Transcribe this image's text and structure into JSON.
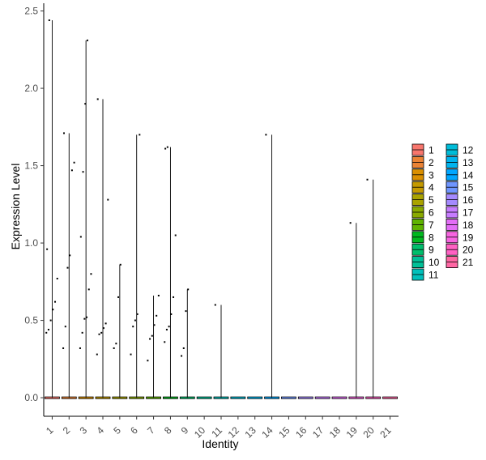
{
  "chart_data": {
    "type": "violin",
    "xlabel": "Identity",
    "ylabel": "Expression Level",
    "ylim": [
      -0.12,
      2.55
    ],
    "yticks": [
      "0.0",
      "0.5",
      "1.0",
      "1.5",
      "2.0",
      "2.5"
    ],
    "grid": false,
    "legend_position": "right",
    "categories": [
      "1",
      "2",
      "3",
      "4",
      "5",
      "6",
      "7",
      "8",
      "9",
      "10",
      "11",
      "12",
      "13",
      "14",
      "15",
      "16",
      "17",
      "18",
      "19",
      "20",
      "21"
    ],
    "max_values": [
      2.44,
      1.71,
      2.31,
      1.93,
      0.86,
      1.7,
      0.66,
      1.62,
      0.7,
      0,
      0.6,
      0,
      0,
      1.7,
      0,
      0,
      0,
      0,
      1.13,
      1.41,
      0
    ],
    "colors": [
      "#F8766D",
      "#EB8335",
      "#DA8F00",
      "#C49A00",
      "#AAA300",
      "#8AAB00",
      "#5EB300",
      "#00B81F",
      "#00BE6C",
      "#00C097",
      "#00C0BB",
      "#00BCD8",
      "#00B4EF",
      "#00A6FF",
      "#6F96FF",
      "#A58AFF",
      "#C77CFF",
      "#E36EF6",
      "#F765E0",
      "#FF61C3",
      "#FF67A4"
    ],
    "points": {
      "1": [
        0.42,
        0.44,
        0.5,
        0.57,
        0.62,
        0.77,
        0.96,
        2.44
      ],
      "2": [
        0.32,
        0.46,
        0.84,
        0.92,
        1.47,
        1.52,
        1.71
      ],
      "3": [
        0.32,
        0.42,
        0.51,
        0.52,
        0.7,
        0.8,
        1.04,
        1.46,
        1.9,
        2.31
      ],
      "4": [
        0.28,
        0.41,
        0.42,
        0.45,
        0.48,
        1.28,
        1.93
      ],
      "5": [
        0.32,
        0.35,
        0.65,
        0.86
      ],
      "6": [
        0.28,
        0.46,
        0.5,
        0.54,
        1.7
      ],
      "7": [
        0.24,
        0.38,
        0.4,
        0.47,
        0.53,
        0.66
      ],
      "8": [
        0.36,
        0.44,
        0.46,
        0.54,
        0.65,
        1.05,
        1.61,
        1.62
      ],
      "9": [
        0.27,
        0.32,
        0.56,
        0.7
      ],
      "11": [
        0.6
      ],
      "14": [
        1.7
      ],
      "19": [
        1.13
      ],
      "20": [
        1.41
      ]
    },
    "legend_col1": [
      "1",
      "2",
      "3",
      "4",
      "5",
      "6",
      "7",
      "8",
      "9",
      "10",
      "11"
    ],
    "legend_col2": [
      "12",
      "13",
      "14",
      "15",
      "16",
      "17",
      "18",
      "19",
      "20",
      "21"
    ]
  }
}
